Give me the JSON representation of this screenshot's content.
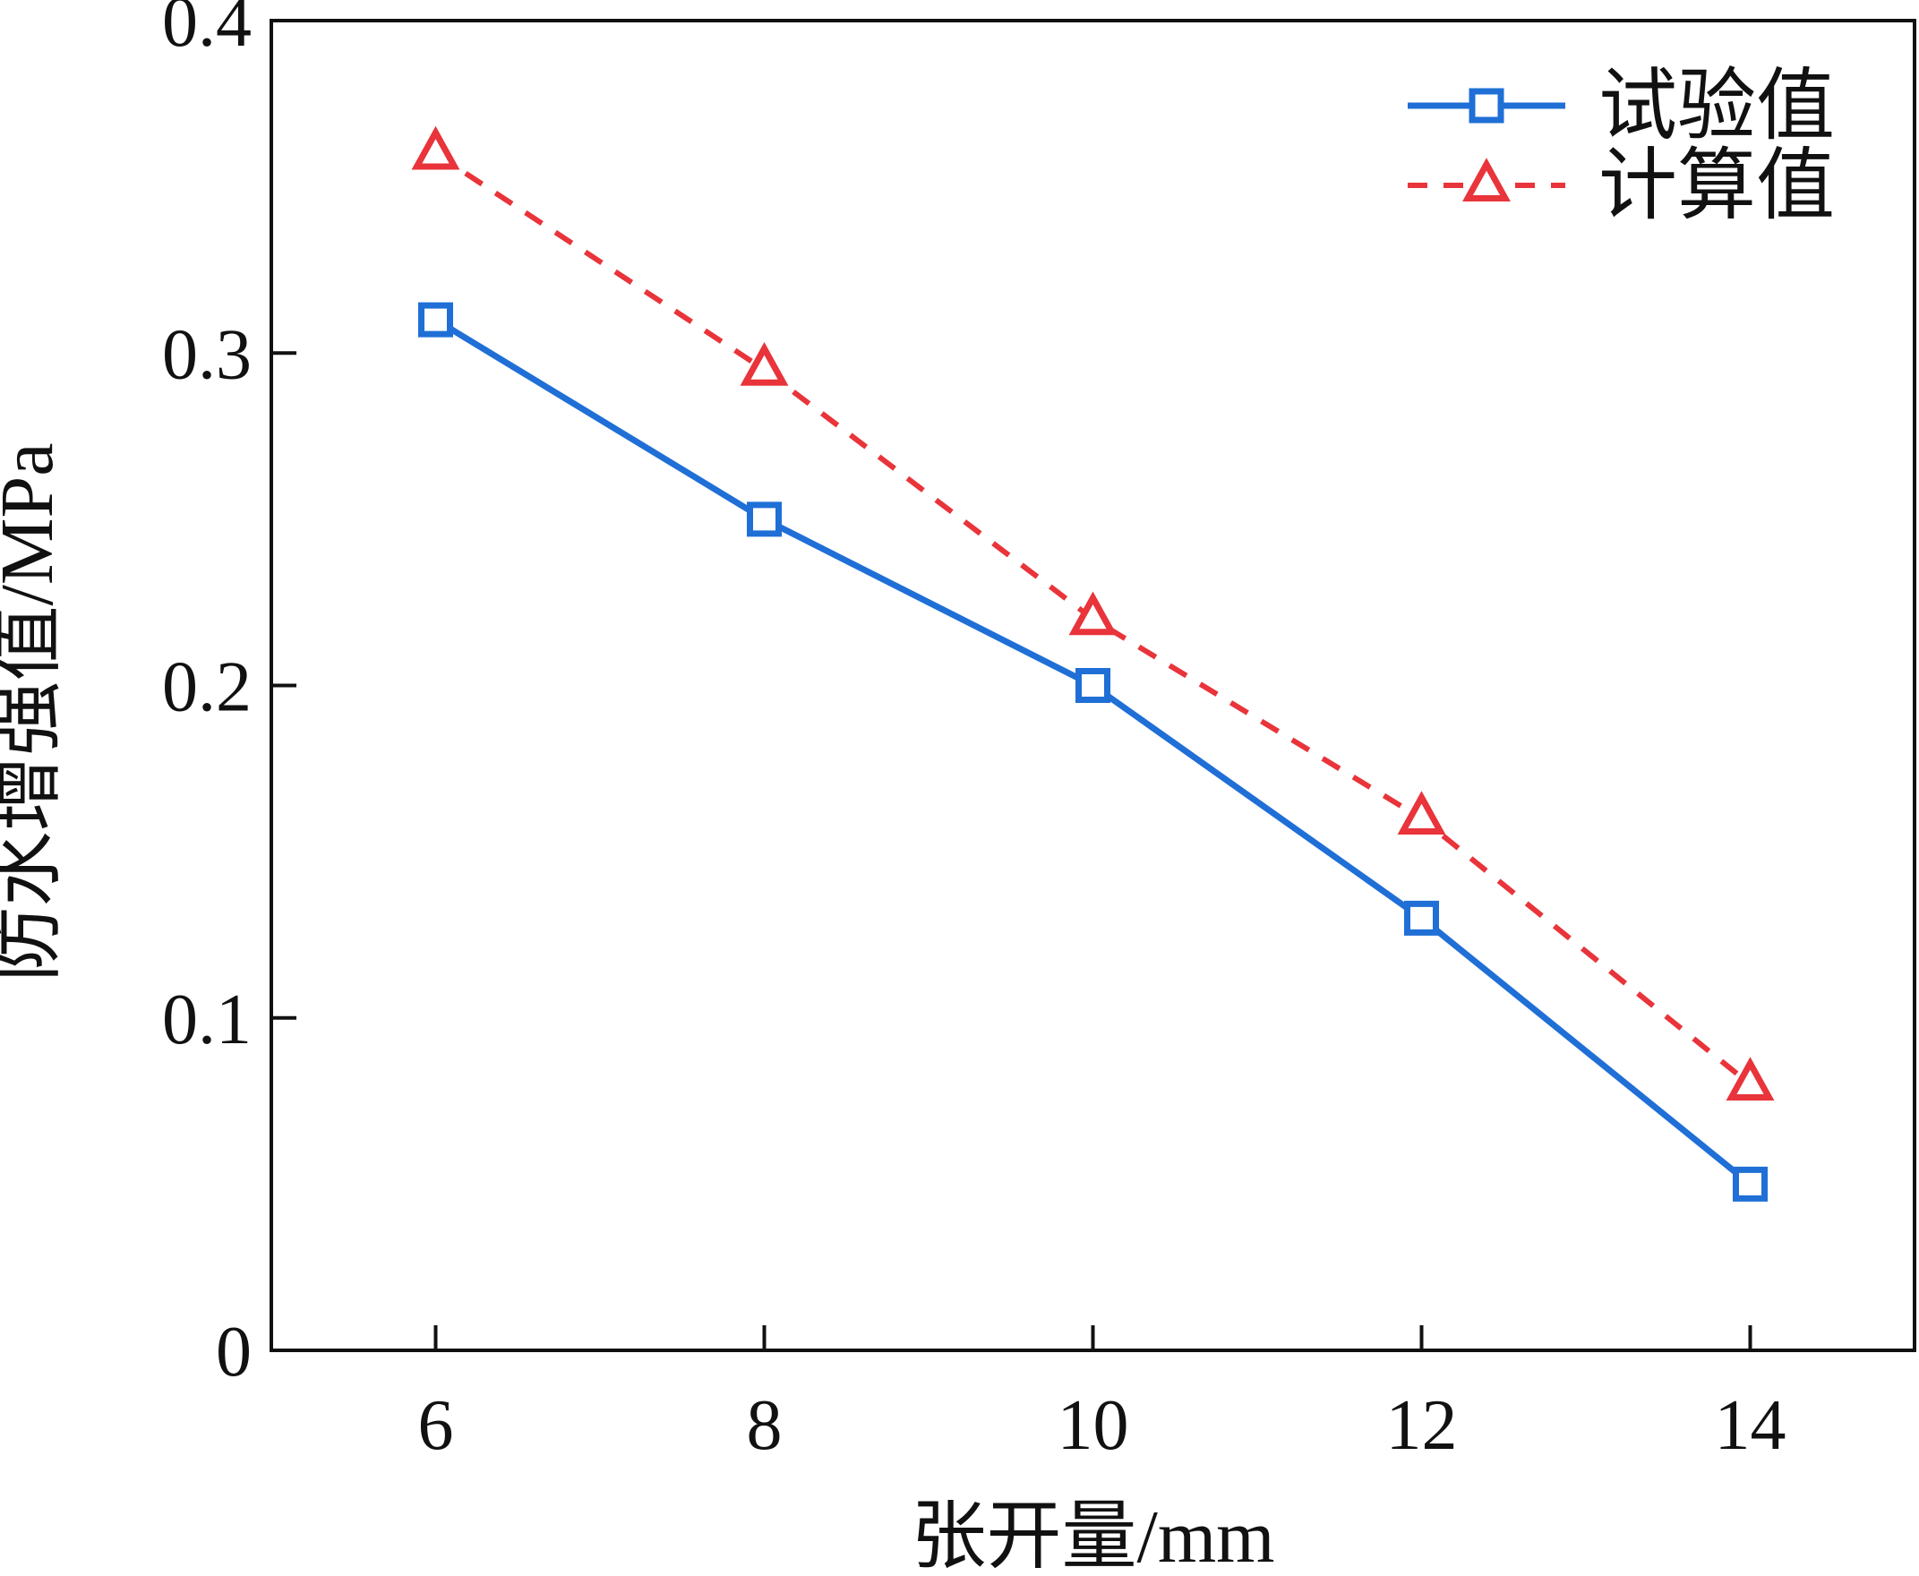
{
  "chart_data": {
    "type": "line",
    "x": [
      6,
      8,
      10,
      12,
      14
    ],
    "series": [
      {
        "name": "试验值",
        "values": [
          0.31,
          0.25,
          0.2,
          0.13,
          0.05
        ],
        "color": "#1f6fd6",
        "line_style": "solid",
        "marker": "square-icon"
      },
      {
        "name": "计算值",
        "values": [
          0.36,
          0.295,
          0.22,
          0.16,
          0.08
        ],
        "color": "#e8343a",
        "line_style": "dashed",
        "marker": "triangle-icon"
      }
    ],
    "title": "",
    "xlabel": "张开量/mm",
    "ylabel": "防水增强值/MPa",
    "xlim": [
      5,
      15
    ],
    "ylim": [
      0,
      0.4
    ],
    "xticks": [
      "6",
      "8",
      "10",
      "12",
      "14"
    ],
    "yticks": [
      "0",
      "0.1",
      "0.2",
      "0.3",
      "0.4"
    ],
    "grid": false,
    "legend_position": "top-right"
  }
}
